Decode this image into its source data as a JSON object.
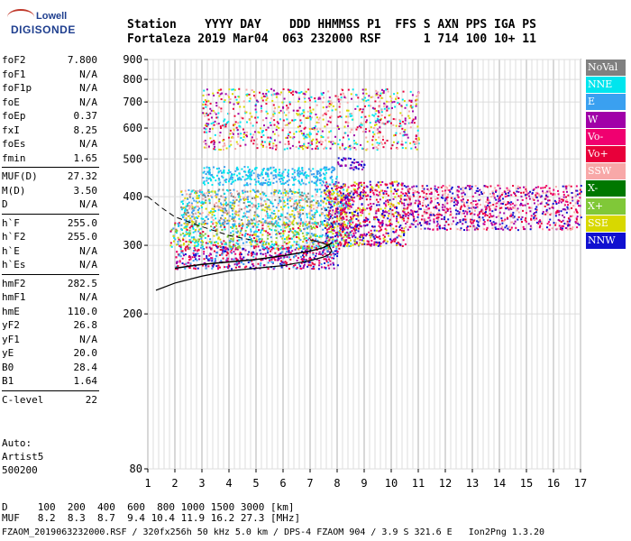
{
  "logo": {
    "top": "Lowell",
    "bottom": "DIGISONDE"
  },
  "header": {
    "line1": "Station    YYYY DAY    DDD HHMMSS P1  FFS S AXN PPS IGA PS",
    "line2": "Fortaleza 2019 Mar04  063 232000 RSF      1 714 100 10+ 11"
  },
  "params": [
    {
      "k": "foF2",
      "v": "7.800"
    },
    {
      "k": "foF1",
      "v": "N/A"
    },
    {
      "k": "foF1p",
      "v": "N/A"
    },
    {
      "k": "foE",
      "v": "N/A"
    },
    {
      "k": "foEp",
      "v": "0.37"
    },
    {
      "k": "fxI",
      "v": "8.25"
    },
    {
      "k": "foEs",
      "v": "N/A"
    },
    {
      "k": "fmin",
      "v": "1.65"
    },
    {
      "k": "MUF(D)",
      "v": "27.32"
    },
    {
      "k": "M(D)",
      "v": "3.50"
    },
    {
      "k": "D",
      "v": "N/A"
    },
    {
      "k": "h`F",
      "v": "255.0"
    },
    {
      "k": "h`F2",
      "v": "255.0"
    },
    {
      "k": "h`E",
      "v": "N/A"
    },
    {
      "k": "h`Es",
      "v": "N/A"
    },
    {
      "k": "hmF2",
      "v": "282.5"
    },
    {
      "k": "hmF1",
      "v": "N/A"
    },
    {
      "k": "hmE",
      "v": "110.0"
    },
    {
      "k": "yF2",
      "v": "26.8"
    },
    {
      "k": "yF1",
      "v": "N/A"
    },
    {
      "k": "yE",
      "v": "20.0"
    },
    {
      "k": "B0",
      "v": "28.4"
    },
    {
      "k": "B1",
      "v": "1.64"
    },
    {
      "k": "C-level",
      "v": "22"
    }
  ],
  "auto": "Auto:\nArtist5\n500200",
  "legend": [
    {
      "label": "NoVal",
      "color": "#808080"
    },
    {
      "label": "NNE",
      "color": "#00e5ee"
    },
    {
      "label": "E",
      "color": "#3aa0f0"
    },
    {
      "label": "W",
      "color": "#a000a8"
    },
    {
      "label": "Vo-",
      "color": "#f00070"
    },
    {
      "label": "Vo+",
      "color": "#e8003a"
    },
    {
      "label": "SSW",
      "color": "#f8a8a8"
    },
    {
      "label": "X-",
      "color": "#007800"
    },
    {
      "label": "X+",
      "color": "#80c838"
    },
    {
      "label": "SSE",
      "color": "#d8d800"
    },
    {
      "label": "NNW",
      "color": "#1010d0"
    }
  ],
  "footer": {
    "d_row": "D     100  200  400  600  800 1000 1500 3000 [km]",
    "muf_row": "MUF   8.2  8.3  8.7  9.4 10.4 11.9 16.2 27.3 [MHz]",
    "file_row": "FZAOM_2019063232000.RSF / 320fx256h 50 kHz 5.0 km / DPS-4 FZAOM 904 / 3.9 S 321.6 E   Ion2Png 1.3.20"
  },
  "chart_data": {
    "type": "scatter",
    "xlim": [
      1,
      17
    ],
    "ylim": [
      80,
      900
    ],
    "x_ticks": [
      1,
      2,
      3,
      4,
      5,
      6,
      7,
      8,
      9,
      10,
      11,
      12,
      13,
      14,
      15,
      16,
      17
    ],
    "y_ticks": [
      80,
      200,
      300,
      400,
      500,
      600,
      700,
      800,
      900
    ],
    "y_scale": "log",
    "grid": true,
    "legend_position": "right",
    "profile_curve": {
      "x": [
        1.3,
        2,
        3,
        4,
        5,
        6,
        6.5,
        7,
        7.5,
        7.7,
        7.8,
        7.7,
        7.4,
        7.0
      ],
      "y": [
        230,
        240,
        250,
        258,
        262,
        266,
        270,
        274,
        280,
        284,
        290,
        300,
        305,
        310
      ]
    },
    "trace_curve": {
      "x": [
        2,
        3,
        4,
        5,
        6,
        7,
        7.5,
        7.8
      ],
      "y": [
        262,
        268,
        272,
        276,
        282,
        290,
        296,
        304
      ]
    },
    "dashed_curve": {
      "x": [
        1,
        1.5,
        2,
        3,
        4,
        5
      ],
      "y": [
        400,
        375,
        355,
        335,
        318,
        308
      ]
    },
    "echo_regions": [
      {
        "x0": 2.0,
        "x1": 8.0,
        "y0": 262,
        "y1": 300,
        "colors": [
          "Vo+",
          "Vo-",
          "W",
          "NNW",
          "E"
        ]
      },
      {
        "x0": 1.8,
        "x1": 8.5,
        "y0": 295,
        "y1": 345,
        "colors": [
          "E",
          "NNE",
          "SSE",
          "Vo+",
          "X+"
        ]
      },
      {
        "x0": 2.2,
        "x1": 8.5,
        "y0": 340,
        "y1": 420,
        "colors": [
          "E",
          "NNE",
          "SSW",
          "SSE",
          "NoVal"
        ]
      },
      {
        "x0": 7.5,
        "x1": 10.5,
        "y0": 300,
        "y1": 440,
        "colors": [
          "W",
          "Vo+",
          "NNW",
          "SSE",
          "Vo-"
        ]
      },
      {
        "x0": 10.5,
        "x1": 17,
        "y0": 330,
        "y1": 430,
        "colors": [
          "Vo+",
          "W",
          "Vo-",
          "SSW",
          "NNW"
        ]
      },
      {
        "x0": 3,
        "x1": 8,
        "y0": 430,
        "y1": 480,
        "colors": [
          "E",
          "NNE"
        ]
      },
      {
        "x0": 8,
        "x1": 9,
        "y0": 470,
        "y1": 505,
        "colors": [
          "NNW",
          "W"
        ]
      },
      {
        "x0": 3,
        "x1": 11,
        "y0": 530,
        "y1": 760,
        "colors": [
          "W",
          "NNE",
          "Vo+",
          "SSE",
          "SSW"
        ]
      }
    ]
  }
}
